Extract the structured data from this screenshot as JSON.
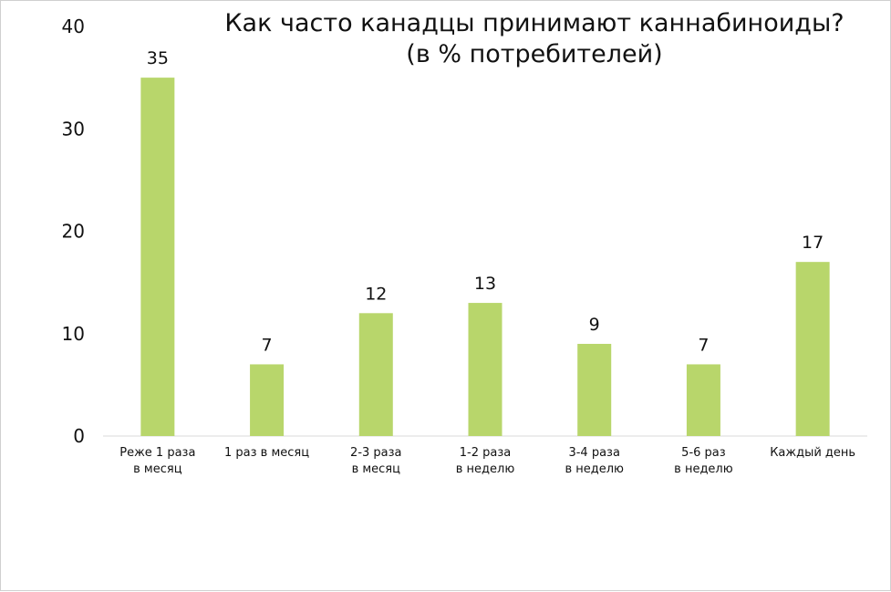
{
  "chart_data": {
    "type": "bar",
    "title": "Как часто канадцы принимают каннабиноиды?\n(в % потребителей)",
    "xlabel": "",
    "ylabel": "",
    "ylim": [
      0,
      40
    ],
    "yticks": [
      0,
      10,
      20,
      30,
      40
    ],
    "grid": false,
    "legend": "none",
    "bar_color": "#b8d66b",
    "categories": [
      [
        "Реже 1 раза",
        "в месяц"
      ],
      [
        "1 раз в месяц"
      ],
      [
        "2-3 раза",
        "в месяц"
      ],
      [
        "1-2 раза",
        "в неделю"
      ],
      [
        "3-4 раза",
        "в неделю"
      ],
      [
        "5-6 раз",
        "в неделю"
      ],
      [
        "Каждый день"
      ]
    ],
    "values": [
      35,
      7,
      12,
      13,
      9,
      7,
      17
    ]
  }
}
